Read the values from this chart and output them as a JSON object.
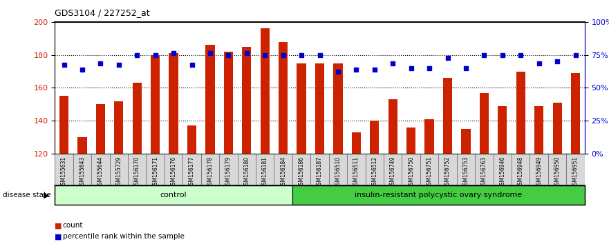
{
  "title": "GDS3104 / 227252_at",
  "categories": [
    "GSM155631",
    "GSM155643",
    "GSM155644",
    "GSM155729",
    "GSM156170",
    "GSM156171",
    "GSM156176",
    "GSM156177",
    "GSM156178",
    "GSM156179",
    "GSM156180",
    "GSM156181",
    "GSM156184",
    "GSM156186",
    "GSM156187",
    "GSM156510",
    "GSM156511",
    "GSM156512",
    "GSM156749",
    "GSM156750",
    "GSM156751",
    "GSM156752",
    "GSM156753",
    "GSM156763",
    "GSM156946",
    "GSM156948",
    "GSM156949",
    "GSM156950",
    "GSM156951"
  ],
  "bar_values": [
    155,
    130,
    150,
    152,
    163,
    180,
    181,
    137,
    186,
    182,
    185,
    196,
    188,
    175,
    175,
    175,
    133,
    140,
    153,
    136,
    141,
    166,
    135,
    157,
    149,
    170,
    149,
    151,
    169
  ],
  "dot_values_left": [
    174,
    171,
    175,
    174,
    180,
    180,
    181,
    174,
    181,
    180,
    181,
    180,
    180,
    180,
    180,
    170,
    171,
    171,
    175,
    172,
    172,
    178,
    172,
    180,
    180,
    180,
    175,
    176,
    180
  ],
  "control_count": 13,
  "bar_color": "#cc2200",
  "dot_color": "#0000cc",
  "ylim_left": [
    120,
    200
  ],
  "ylim_right": [
    0,
    100
  ],
  "yticks_left": [
    120,
    140,
    160,
    180,
    200
  ],
  "yticks_right": [
    0,
    25,
    50,
    75,
    100
  ],
  "control_label": "control",
  "disease_label": "insulin-resistant polycystic ovary syndrome",
  "disease_state_label": "disease state",
  "legend_bar": "count",
  "legend_dot": "percentile rank within the sample",
  "control_color": "#ccffcc",
  "disease_color": "#44cc44",
  "bg_color": "#d8d8d8",
  "dotted_line_values": [
    140,
    160,
    180
  ],
  "bar_width": 0.5
}
